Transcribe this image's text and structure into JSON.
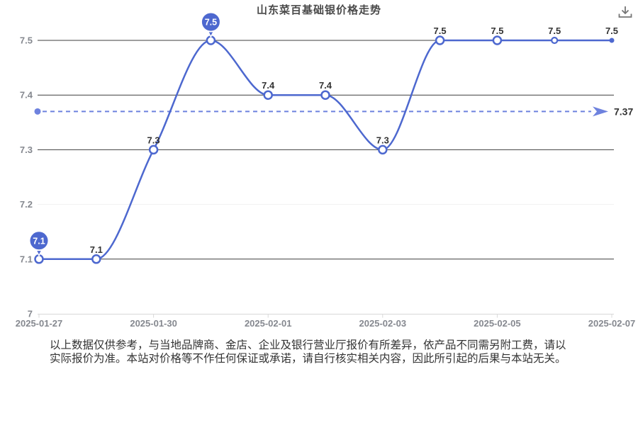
{
  "colors": {
    "series": "#4d68cf",
    "reference": "#6e82de",
    "balloon_fill": "#4d68cf",
    "balloon_text": "#ffffff",
    "grid_dark": "#3f3f3f",
    "grid_light": "#f0f0f0",
    "axis": "#d8d8d8",
    "axis_text": "#85888f",
    "label_text": "#333333",
    "title_text": "#4a4a4a",
    "icon": "#757575"
  },
  "header": {
    "icons": [
      "download-icon"
    ]
  },
  "chart_data": {
    "type": "line",
    "title": "山东菜百基础银价格走势",
    "x_tick_labels": [
      "2025-01-27",
      "2025-01-30",
      "2025-02-01",
      "2025-02-03",
      "2025-02-05",
      "2025-02-07"
    ],
    "x_tick_indices": [
      0,
      2,
      4,
      6,
      8,
      10
    ],
    "values": [
      7.1,
      7.1,
      7.3,
      7.5,
      7.4,
      7.4,
      7.3,
      7.5,
      7.5,
      7.5,
      7.5
    ],
    "point_labels": [
      "7.1",
      "7.1",
      "7.3",
      "7.5",
      "7.4",
      "7.4",
      "7.3",
      "7.5",
      "7.5",
      "7.5",
      "7.5"
    ],
    "balloon_indices": [
      0,
      3
    ],
    "y_ticks": [
      7,
      7.1,
      7.2,
      7.3,
      7.4,
      7.5
    ],
    "y_tick_labels": [
      "7",
      "7.1",
      "7.2",
      "7.3",
      "7.4",
      "7.5"
    ],
    "ylim": [
      7,
      7.5
    ],
    "gridlines_dark": [
      7.5,
      7.4,
      7.3,
      7.1
    ],
    "gridlines_light": [
      7.2
    ],
    "reference_line": {
      "value": 7.37,
      "label": "7.37",
      "style": "dashed"
    },
    "smooth": true,
    "grid": true,
    "legend": null
  },
  "disclaimer": {
    "line1": "以上数据仅供参考，与当地品牌商、金店、企业及银行营业厅报价有所差异，依产品不同需另附工费，请以",
    "line2": "实际报价为准。本站对价格等不作任何保证或承诺，请自行核实相关内容，因此所引起的后果与本站无关。"
  }
}
